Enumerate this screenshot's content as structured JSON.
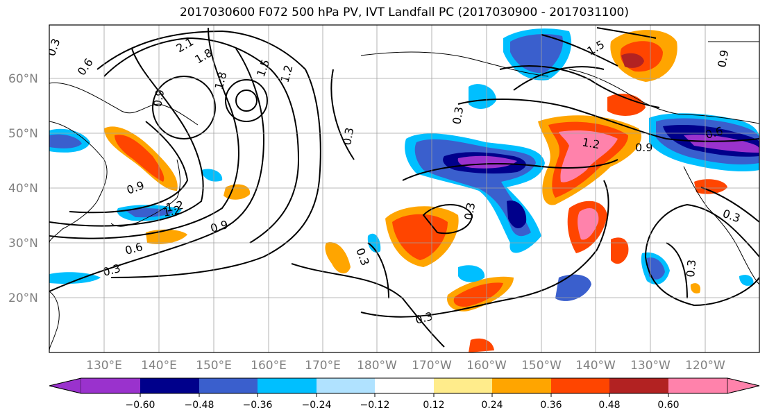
{
  "title": "2017030600 F072 500 hPa PV, IVT Landfall PC (2017030900 - 2017031100)",
  "lat_labels": [
    "60°N",
    "50°N",
    "40°N",
    "30°N",
    "20°N"
  ],
  "lon_labels": [
    "130°E",
    "140°E",
    "150°E",
    "160°E",
    "170°E",
    "180°W",
    "170°W",
    "160°W",
    "150°W",
    "140°W",
    "130°W",
    "120°W"
  ],
  "contour_labels": [
    "0.3",
    "0.6",
    "2.1",
    "1.8",
    "1.5",
    "0.9",
    "1.2",
    "0.3",
    "0.9",
    "0.6",
    "0.3",
    "0.9",
    "1.2",
    "0.3",
    "0.3",
    "0.6",
    "1.2",
    "0.9",
    "1.5",
    "0.9",
    "0.3",
    "0.3",
    "1.8",
    "1.2",
    "0.3",
    "0.3"
  ],
  "colorbar": {
    "ticks": [
      "−0.60",
      "−0.48",
      "−0.36",
      "−0.24",
      "−0.12",
      "0.12",
      "0.24",
      "0.36",
      "0.48",
      "0.60"
    ],
    "colors": [
      "#9a32cd",
      "#00008b",
      "#3a5fcd",
      "#00bfff",
      "#b0e2ff",
      "#ffffff",
      "#ffec8b",
      "#ffa500",
      "#ff4500",
      "#b22222",
      "#ff82ab"
    ]
  },
  "colors": {
    "neg_purple": "#9a32cd",
    "neg_navy": "#00008b",
    "neg_blue": "#3a5fcd",
    "neg_sky": "#00bfff",
    "neg_light": "#b0e2ff",
    "pos_yellow": "#ffec8b",
    "pos_orange": "#ffa500",
    "pos_red": "#ff4500",
    "pos_darkred": "#b22222",
    "pos_pink": "#ff82ab"
  }
}
